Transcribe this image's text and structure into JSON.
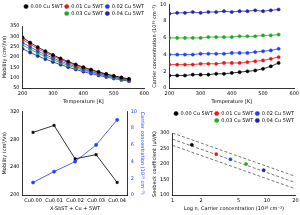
{
  "chart_data": [
    {
      "type": "line",
      "xlabel": "Temperature [K]",
      "ylabel": "Mobility (cm²/Vs)",
      "x": [
        200,
        225,
        250,
        275,
        300,
        325,
        350,
        375,
        400,
        425,
        450,
        475,
        500,
        525,
        550
      ],
      "xlim": [
        200,
        600
      ],
      "xticks": [
        200,
        300,
        400,
        500,
        600
      ],
      "ylim": [
        50,
        350
      ],
      "yticks": [
        50,
        100,
        150,
        200,
        250,
        300,
        350
      ],
      "grid": false,
      "legend": "upper right",
      "series": [
        {
          "name": "0.00 Cu 5WT",
          "color": "#000000",
          "marker": "circle",
          "values": [
            295,
            270,
            248,
            228,
            210,
            193,
            178,
            164,
            151,
            139,
            128,
            118,
            109,
            101,
            94
          ]
        },
        {
          "name": "0.01 Cu 5WT",
          "color": "#e41a1c",
          "marker": "circle",
          "values": [
            285,
            262,
            240,
            221,
            204,
            188,
            173,
            160,
            147,
            136,
            125,
            116,
            107,
            99,
            92
          ]
        },
        {
          "name": "0.02 Cu 5WT",
          "color": "#1f3fff",
          "marker": "circle",
          "values": [
            270,
            249,
            229,
            211,
            195,
            180,
            166,
            153,
            141,
            130,
            120,
            111,
            103,
            95,
            88
          ]
        },
        {
          "name": "0.03 Cu 5WT",
          "color": "#22aa22",
          "marker": "circle",
          "values": [
            258,
            238,
            219,
            202,
            187,
            172,
            159,
            147,
            136,
            126,
            116,
            108,
            100,
            92,
            86
          ]
        },
        {
          "name": "0.04 Cu 5WT",
          "color": "#2222aa",
          "marker": "circle",
          "values": [
            240,
            222,
            205,
            190,
            176,
            163,
            151,
            140,
            129,
            120,
            111,
            103,
            96,
            89,
            83
          ]
        }
      ]
    },
    {
      "type": "line",
      "xlabel": "Temperature [K]",
      "ylabel": "Carrier concentration (10¹⁹ cm⁻³)",
      "x": [
        200,
        225,
        250,
        275,
        300,
        325,
        350,
        375,
        400,
        425,
        450,
        475,
        500,
        525,
        550
      ],
      "xlim": [
        200,
        600
      ],
      "xticks": [
        200,
        300,
        400,
        500,
        600
      ],
      "ylim": [
        0,
        10
      ],
      "yticks": [
        0,
        2,
        4,
        6,
        8,
        10
      ],
      "grid": false,
      "series": [
        {
          "name": "0.00 Cu 5WT",
          "color": "#000000",
          "marker": "circle",
          "values": [
            1.5,
            1.5,
            1.5,
            1.6,
            1.6,
            1.6,
            1.7,
            1.7,
            1.8,
            1.9,
            2.0,
            2.1,
            2.3,
            2.6,
            3.0
          ]
        },
        {
          "name": "0.01 Cu 5WT",
          "color": "#e41a1c",
          "marker": "circle",
          "values": [
            2.8,
            2.8,
            2.8,
            2.8,
            2.9,
            2.9,
            2.9,
            3.0,
            3.0,
            3.0,
            3.1,
            3.2,
            3.3,
            3.5,
            3.7
          ]
        },
        {
          "name": "0.02 Cu 5WT",
          "color": "#1f3fff",
          "marker": "circle",
          "values": [
            4.0,
            4.0,
            4.0,
            4.0,
            4.1,
            4.1,
            4.1,
            4.1,
            4.2,
            4.2,
            4.2,
            4.3,
            4.4,
            4.5,
            4.7
          ]
        },
        {
          "name": "0.03 Cu 5WT",
          "color": "#22aa22",
          "marker": "circle",
          "values": [
            6.0,
            6.0,
            6.0,
            6.0,
            6.0,
            6.1,
            6.1,
            6.1,
            6.1,
            6.2,
            6.2,
            6.2,
            6.3,
            6.3,
            6.4
          ]
        },
        {
          "name": "0.04 Cu 5WT",
          "color": "#2222aa",
          "marker": "circle",
          "values": [
            8.9,
            9.0,
            9.0,
            9.1,
            9.0,
            9.1,
            9.1,
            9.2,
            9.1,
            9.2,
            9.2,
            9.3,
            9.2,
            9.3,
            9.4
          ]
        }
      ]
    },
    {
      "type": "line",
      "xlabel": "X-SbST + Cu + 5WT",
      "ylabel": "Mobility (cm²/Vs)",
      "y2label": "Carrier concentration (10¹⁹ cm⁻³)",
      "categories": [
        "Cu0.00",
        "Cu0.01",
        "Cu0.02",
        "Cu0.03",
        "Cu0.04"
      ],
      "ylim": [
        200,
        320
      ],
      "yticks": [
        200,
        240,
        280,
        320
      ],
      "y2lim": [
        0,
        10
      ],
      "y2ticks": [
        0,
        2,
        4,
        6,
        8,
        10
      ],
      "grid": false,
      "series": [
        {
          "name": "Mobility",
          "color": "#000000",
          "marker": "square",
          "values": [
            290,
            300,
            252,
            258,
            218
          ]
        },
        {
          "name": "Carrier concentration",
          "color": "#1f3fff",
          "marker": "circle",
          "axis": "y2",
          "values": [
            1.5,
            2.8,
            4.0,
            6.0,
            9.0
          ]
        }
      ]
    },
    {
      "type": "scatter",
      "xlabel": "Log n, Carrier concentration (10¹⁹ cm⁻³)",
      "ylabel": "Seebeck coefficient (µV/K)",
      "log": "x",
      "xlim": [
        1,
        20
      ],
      "xticks": [
        1,
        2,
        5,
        10,
        20
      ],
      "ylim": [
        100,
        300
      ],
      "yticks": [
        100,
        150,
        200,
        250,
        300
      ],
      "grid": false,
      "legend": "upper right",
      "series": [
        {
          "name": "0.00 Cu 5WT",
          "color": "#000000",
          "marker": "circle",
          "x": [
            1.6
          ],
          "values": [
            262
          ]
        },
        {
          "name": "0.01 Cu 5WT",
          "color": "#e41a1c",
          "marker": "circle",
          "x": [
            2.9
          ],
          "values": [
            232
          ]
        },
        {
          "name": "0.02 Cu 5WT",
          "color": "#1f3fff",
          "marker": "circle",
          "x": [
            4.1
          ],
          "values": [
            215
          ]
        },
        {
          "name": "0.03 Cu 5WT",
          "color": "#22aa22",
          "marker": "circle",
          "x": [
            6.0
          ],
          "values": [
            200
          ]
        },
        {
          "name": "0.04 Cu 5WT",
          "color": "#2222aa",
          "marker": "circle",
          "x": [
            9.2
          ],
          "values": [
            180
          ]
        },
        {
          "type": "line",
          "color": "#555555",
          "line_style": "dashed",
          "x": [
            1,
            20
          ],
          "values": [
            300,
            160
          ]
        },
        {
          "type": "line",
          "color": "#555555",
          "line_style": "dashed",
          "x": [
            1,
            20
          ],
          "values": [
            280,
            140
          ]
        },
        {
          "type": "line",
          "color": "#555555",
          "line_style": "dashed",
          "x": [
            1,
            20
          ],
          "values": [
            260,
            120
          ]
        }
      ]
    }
  ]
}
